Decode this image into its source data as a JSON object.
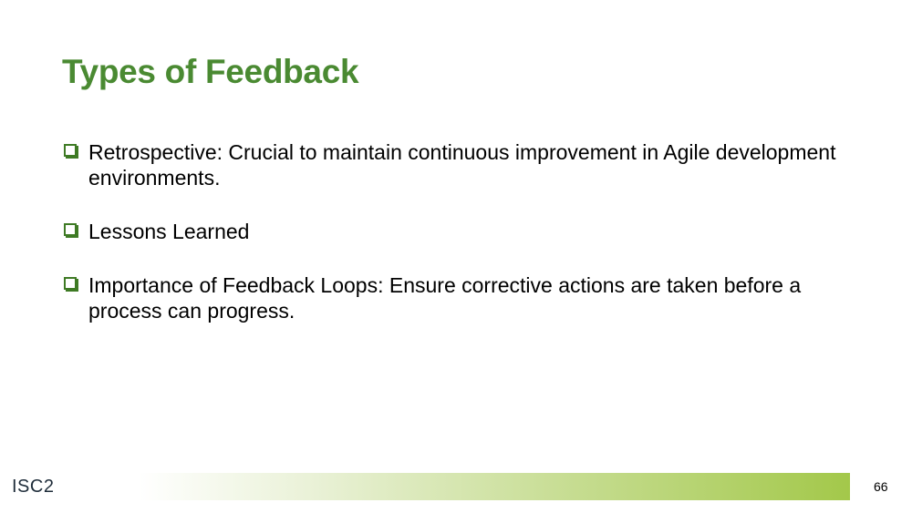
{
  "slide": {
    "title": "Types of Feedback",
    "bullets": [
      {
        "text": "Retrospective: Crucial to maintain continuous improvement in Agile development environments."
      },
      {
        "text": "Lessons Learned"
      },
      {
        "text": "Importance of Feedback Loops: Ensure corrective actions are taken before a process can progress."
      }
    ],
    "bullet_icon": "checkbox-square-icon",
    "page_number": "66"
  },
  "footer": {
    "logo_text": "ISC2"
  },
  "colors": {
    "title": "#4a8a32",
    "bullet_icon": "#3e7a24",
    "bar_start": "#ffffff",
    "bar_end": "#a3c84a",
    "logo": "#1f2d3a"
  }
}
